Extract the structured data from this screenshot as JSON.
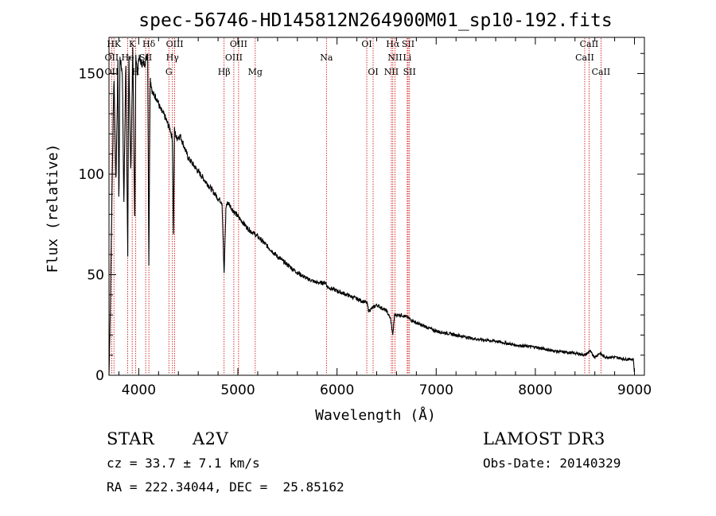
{
  "chart_data": {
    "type": "line",
    "title": "spec-56746-HD145812N264900M01_sp10-192.fits",
    "xlabel": "Wavelength (Å)",
    "ylabel": "Flux (relative)",
    "xlim": [
      3700,
      9100
    ],
    "ylim": [
      0,
      168
    ],
    "xticks": [
      4000,
      5000,
      6000,
      7000,
      8000,
      9000
    ],
    "yticks": [
      0,
      50,
      100,
      150
    ],
    "ytick_labels": [
      "0",
      "50",
      "100",
      "150"
    ],
    "series": [
      {
        "name": "spectrum",
        "x": [
          3700,
          3710,
          3730,
          3750,
          3770,
          3790,
          3800,
          3810,
          3835,
          3850,
          3870,
          3889,
          3900,
          3920,
          3940,
          3960,
          3970,
          3985,
          4000,
          4030,
          4060,
          4090,
          4102,
          4115,
          4140,
          4180,
          4220,
          4260,
          4300,
          4320,
          4340,
          4350,
          4360,
          4380,
          4420,
          4470,
          4500,
          4560,
          4620,
          4680,
          4740,
          4800,
          4840,
          4861,
          4880,
          4900,
          4950,
          5000,
          5100,
          5200,
          5300,
          5400,
          5500,
          5600,
          5700,
          5800,
          5890,
          5900,
          6000,
          6100,
          6200,
          6300,
          6320,
          6400,
          6500,
          6540,
          6563,
          6580,
          6650,
          6700,
          6800,
          6900,
          7000,
          7200,
          7400,
          7600,
          7800,
          8000,
          8200,
          8400,
          8500,
          8550,
          8600,
          8650,
          8700,
          8800,
          8900,
          8990,
          9000
        ],
        "y": [
          0,
          22,
          90,
          150,
          95,
          155,
          80,
          158,
          150,
          85,
          158,
          60,
          160,
          100,
          162,
          70,
          160,
          150,
          158,
          155,
          155,
          160,
          55,
          148,
          140,
          138,
          132,
          129,
          124,
          122,
          117,
          65,
          122,
          118,
          119,
          112,
          108,
          104,
          100,
          96,
          92,
          88,
          86,
          50,
          84,
          86,
          82,
          79,
          73,
          69,
          64,
          59,
          55,
          51,
          48,
          46,
          46,
          44,
          42,
          40,
          38,
          36,
          32,
          35,
          32,
          28,
          20,
          30,
          30,
          29,
          26,
          24,
          22,
          20,
          18,
          17,
          15,
          14,
          12,
          11,
          10,
          12,
          9,
          11,
          9,
          9,
          8,
          8,
          0
        ]
      }
    ],
    "line_ids": [
      {
        "label": "HK",
        "wl": 3750,
        "row": 0
      },
      {
        "label": "K",
        "wl": 3934,
        "row": 0
      },
      {
        "label": "Hδ",
        "wl": 4102,
        "row": 0
      },
      {
        "label": "OIII",
        "wl": 4363,
        "row": 0
      },
      {
        "label": "OIII",
        "wl": 5007,
        "row": 0
      },
      {
        "label": "OI",
        "wl": 6300,
        "row": 0
      },
      {
        "label": "Hα",
        "wl": 6563,
        "row": 0
      },
      {
        "label": "SII",
        "wl": 6717,
        "row": 0
      },
      {
        "label": "CaII",
        "wl": 8542,
        "row": 0
      },
      {
        "label": "OII",
        "wl": 3727,
        "row": 1
      },
      {
        "label": "He",
        "wl": 3889,
        "row": 1
      },
      {
        "label": "SII",
        "wl": 4070,
        "row": 1
      },
      {
        "label": "Hγ",
        "wl": 4340,
        "row": 1
      },
      {
        "label": "OIII",
        "wl": 4959,
        "row": 1
      },
      {
        "label": "Na",
        "wl": 5893,
        "row": 1
      },
      {
        "label": "NII",
        "wl": 6584,
        "row": 1
      },
      {
        "label": "Li",
        "wl": 6708,
        "row": 1
      },
      {
        "label": "CaII",
        "wl": 8498,
        "row": 1
      },
      {
        "label": "OII",
        "wl": 3727,
        "row": 2
      },
      {
        "label": "H",
        "wl": 3970,
        "row": 2
      },
      {
        "label": "G",
        "wl": 4304,
        "row": 2
      },
      {
        "label": "Hβ",
        "wl": 4861,
        "row": 2
      },
      {
        "label": "Mg",
        "wl": 5175,
        "row": 2
      },
      {
        "label": "OI",
        "wl": 6364,
        "row": 2
      },
      {
        "label": "NII",
        "wl": 6548,
        "row": 2
      },
      {
        "label": "SII",
        "wl": 6731,
        "row": 2
      },
      {
        "label": "CaII",
        "wl": 8662,
        "row": 2
      }
    ]
  },
  "info": {
    "object_class": "STAR",
    "subclass": "A2V",
    "survey": "LAMOST DR3",
    "cz": "cz = 33.7 ± 7.1 km/s",
    "obs_date": "Obs-Date: 20140329",
    "coords": "RA = 222.34044, DEC =  25.85162"
  },
  "colors": {
    "line": "#000000",
    "marker": "#cc0000",
    "background": "#ffffff"
  }
}
